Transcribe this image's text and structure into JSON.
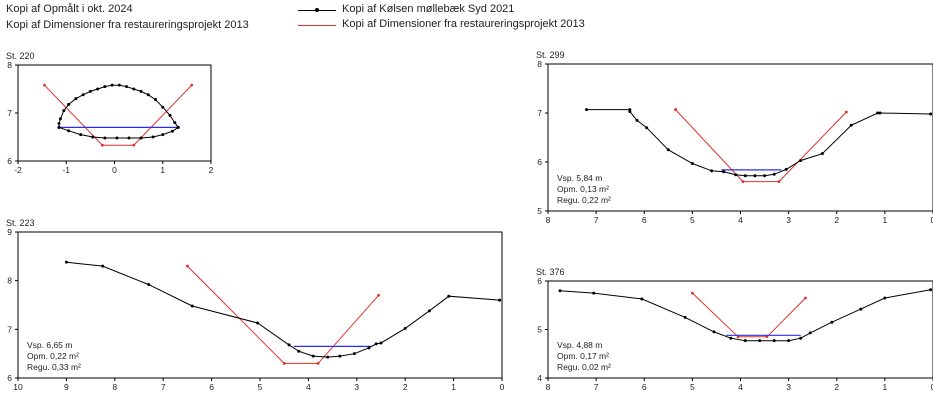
{
  "legend": [
    {
      "label": "Kopi af Opmålt i okt. 2024",
      "color": "",
      "marker": "none"
    },
    {
      "label": "Kopi af Dimensioner fra restaureringsprojekt 2013",
      "color": "",
      "marker": "none"
    },
    {
      "label": "Kopi af Kølsen møllebæk Syd 2021",
      "color": "#000000",
      "marker": "dot"
    },
    {
      "label": "Kopi af Dimensioner fra restaureringsprojekt 2013",
      "color": "#e0302c",
      "marker": "none"
    }
  ],
  "colors": {
    "survey": "#000000",
    "design": "#e0302c",
    "water": "#2d2df0",
    "frame": "#000000"
  },
  "chart_data": [
    {
      "type": "line",
      "title": "St. 220",
      "xlim": [
        -2,
        2
      ],
      "ylim": [
        6,
        8
      ],
      "xticks": [
        -2,
        -1,
        0,
        1,
        2
      ],
      "yticks": [
        6,
        7,
        8
      ],
      "info": [],
      "series": [
        {
          "x": [
            -1.15,
            -1.15,
            -1.12,
            -1.05,
            -0.95,
            -0.8,
            -0.65,
            -0.5,
            -0.35,
            -0.2,
            -0.05,
            0.1,
            0.25,
            0.4,
            0.55,
            0.7,
            0.85,
            1.0,
            1.15,
            1.25,
            1.32
          ],
          "y": [
            6.7,
            6.78,
            6.88,
            7.05,
            7.18,
            7.3,
            7.38,
            7.45,
            7.5,
            7.55,
            7.58,
            7.58,
            7.55,
            7.5,
            7.45,
            7.38,
            7.28,
            7.12,
            6.95,
            6.8,
            6.7
          ],
          "markers": true
        },
        {
          "x": [
            -1.15,
            -0.95,
            -0.7,
            -0.45,
            -0.2,
            0.05,
            0.3,
            0.55,
            0.8,
            1.0,
            1.2,
            1.32
          ],
          "y": [
            6.7,
            6.63,
            6.55,
            6.5,
            6.48,
            6.48,
            6.48,
            6.48,
            6.5,
            6.55,
            6.62,
            6.7
          ],
          "markers": true
        }
      ],
      "design": {
        "x": [
          -1.45,
          -0.25,
          0.4,
          1.6
        ],
        "y": [
          7.58,
          6.33,
          6.33,
          7.58
        ]
      },
      "water": {
        "x": [
          -1.15,
          1.32
        ],
        "y": [
          6.7,
          6.7
        ]
      }
    },
    {
      "type": "line",
      "title": "St. 299",
      "xlim": [
        8,
        0
      ],
      "ylim": [
        5,
        8
      ],
      "xticks": [
        8,
        7,
        6,
        5,
        4,
        3,
        2,
        1,
        0
      ],
      "yticks": [
        5,
        6,
        7,
        8
      ],
      "info": [
        "Vsp. 5,84 m",
        "Opm. 0,13 m²",
        "Regu. 0,22 m²"
      ],
      "series": [
        {
          "x": [
            7.2,
            6.3,
            6.3,
            6.15,
            5.95,
            5.5,
            5.0,
            4.6,
            4.35,
            4.1,
            3.9,
            3.7,
            3.5,
            3.3,
            3.05,
            2.75,
            2.3,
            1.7,
            1.15,
            1.1,
            0.05
          ],
          "y": [
            7.07,
            7.07,
            7.03,
            6.85,
            6.7,
            6.25,
            5.97,
            5.82,
            5.8,
            5.74,
            5.72,
            5.72,
            5.72,
            5.75,
            5.85,
            6.03,
            6.17,
            6.75,
            7.0,
            7.0,
            6.98
          ],
          "markers": true
        }
      ],
      "design": {
        "x": [
          5.35,
          3.95,
          3.2,
          1.8
        ],
        "y": [
          7.07,
          5.6,
          5.6,
          7.02
        ]
      },
      "water": {
        "x": [
          4.4,
          3.15
        ],
        "y": [
          5.84,
          5.84
        ]
      }
    },
    {
      "type": "line",
      "title": "St. 223",
      "xlim": [
        10,
        0
      ],
      "ylim": [
        6,
        9
      ],
      "xticks": [
        10,
        9,
        8,
        7,
        6,
        5,
        4,
        3,
        2,
        1,
        0
      ],
      "yticks": [
        6,
        7,
        8,
        9
      ],
      "info": [
        "Vsp. 6,65 m",
        "Opm. 0,22 m²",
        "Regu. 0,33 m²"
      ],
      "series": [
        {
          "x": [
            9.0,
            8.25,
            7.3,
            6.4,
            5.05,
            4.4,
            4.2,
            3.9,
            3.6,
            3.35,
            3.05,
            2.75,
            2.6,
            2.5,
            2.0,
            1.5,
            1.1,
            0.05
          ],
          "y": [
            8.38,
            8.3,
            7.92,
            7.48,
            7.13,
            6.68,
            6.55,
            6.45,
            6.43,
            6.45,
            6.5,
            6.62,
            6.7,
            6.72,
            7.02,
            7.38,
            7.68,
            7.6
          ],
          "markers": true
        }
      ],
      "design": {
        "x": [
          6.5,
          4.5,
          3.8,
          2.55
        ],
        "y": [
          8.3,
          6.3,
          6.3,
          7.7
        ]
      },
      "water": {
        "x": [
          4.3,
          2.7
        ],
        "y": [
          6.65,
          6.65
        ]
      }
    },
    {
      "type": "line",
      "title": "St. 376",
      "xlim": [
        8,
        0
      ],
      "ylim": [
        4,
        6
      ],
      "xticks": [
        8,
        7,
        6,
        5,
        4,
        3,
        2,
        1,
        0
      ],
      "yticks": [
        4,
        5,
        6
      ],
      "info": [
        "Vsp. 4,88 m",
        "Opm. 0,17 m²",
        "Regu. 0,02 m²"
      ],
      "series": [
        {
          "x": [
            7.75,
            7.05,
            6.05,
            5.15,
            4.55,
            4.2,
            3.9,
            3.6,
            3.3,
            3.0,
            2.75,
            2.55,
            2.1,
            1.5,
            1.0,
            0.05
          ],
          "y": [
            5.8,
            5.75,
            5.63,
            5.25,
            4.95,
            4.82,
            4.77,
            4.77,
            4.77,
            4.77,
            4.82,
            4.93,
            5.15,
            5.42,
            5.65,
            5.82
          ],
          "markers": true
        }
      ],
      "design": {
        "x": [
          5.0,
          4.05,
          3.45,
          2.65
        ],
        "y": [
          5.75,
          4.85,
          4.85,
          5.65
        ]
      },
      "water": {
        "x": [
          4.3,
          2.75
        ],
        "y": [
          4.88,
          4.88
        ]
      }
    }
  ]
}
